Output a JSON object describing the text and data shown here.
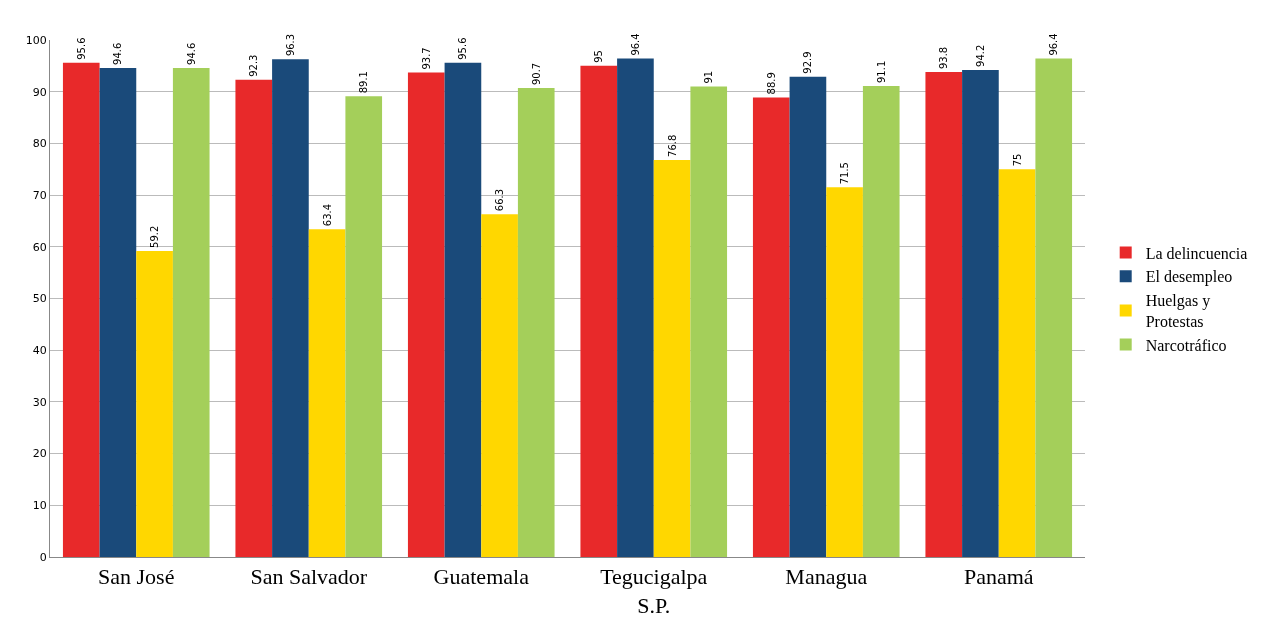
{
  "chart_data": {
    "type": "bar",
    "categories": [
      "San José",
      "San Salvador",
      "Guatemala",
      "Tegucigalpa\nS.P.",
      "Managua",
      "Panamá"
    ],
    "series": [
      {
        "name": "La delincuencia",
        "color": "#e8292a",
        "values": [
          95.6,
          92.3,
          93.7,
          95,
          88.9,
          93.8
        ]
      },
      {
        "name": "El desempleo",
        "color": "#1a4a7a",
        "values": [
          94.6,
          96.3,
          95.6,
          96.4,
          92.9,
          94.2
        ]
      },
      {
        "name": "Huelgas y\nProtestas",
        "color": "#ffd700",
        "values": [
          59.2,
          63.4,
          66.3,
          76.8,
          71.5,
          75
        ]
      },
      {
        "name": "Narcotráfico",
        "color": "#a4cf5a",
        "values": [
          94.6,
          89.1,
          90.7,
          91,
          91.1,
          96.4
        ]
      }
    ],
    "ylim": [
      0,
      100
    ],
    "yticks": [
      0,
      10,
      20,
      30,
      40,
      50,
      60,
      70,
      80,
      90,
      100
    ],
    "grid": "y",
    "legend": "right",
    "data_labels": true
  }
}
